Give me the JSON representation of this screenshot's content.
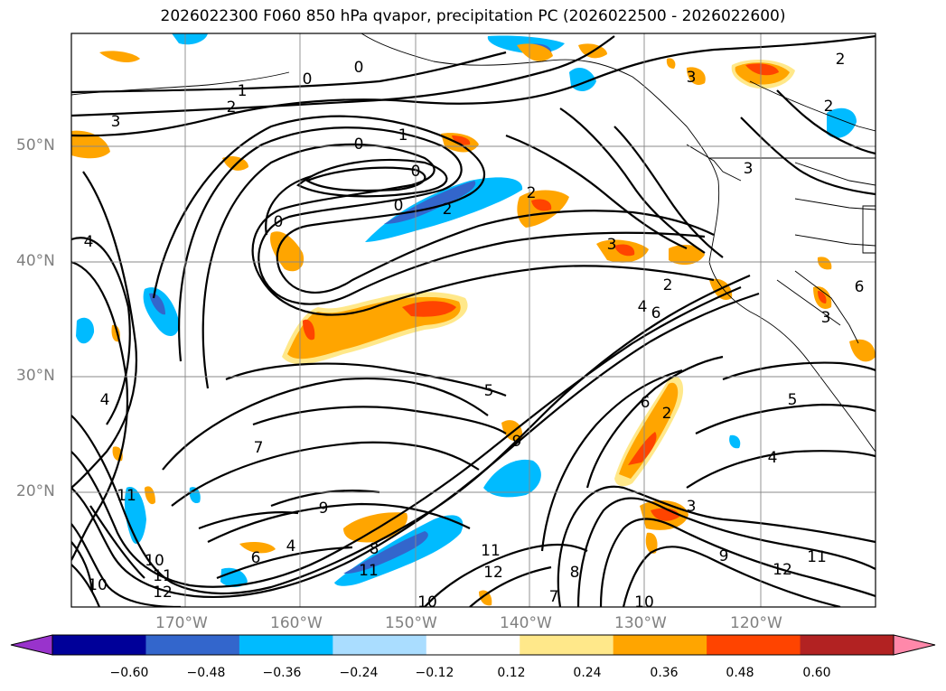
{
  "title": "2026022300 F060 850 hPa qvapor, precipitation PC (2026022500 - 2026022600)",
  "lat_labels": [
    "50°N",
    "40°N",
    "30°N",
    "20°N"
  ],
  "lon_labels": [
    "170°W",
    "160°W",
    "150°W",
    "140°W",
    "130°W",
    "120°W"
  ],
  "colorbar": {
    "ticks": [
      "−0.60",
      "−0.48",
      "−0.36",
      "−0.24",
      "−0.12",
      "0.12",
      "0.24",
      "0.36",
      "0.48",
      "0.60"
    ],
    "colors": [
      "#9933cc",
      "#000099",
      "#3366cc",
      "#00bbff",
      "#aaddff",
      "#ffffff",
      "#ffe88a",
      "#ffa500",
      "#ff4400",
      "#b22222",
      "#ff88aa"
    ]
  },
  "contour_labels": [
    "0",
    "1",
    "2",
    "3",
    "4",
    "5",
    "6",
    "7",
    "8",
    "9",
    "10",
    "11",
    "12"
  ],
  "contour_label_marks": [
    [
      "0",
      340,
      88
    ],
    [
      "1",
      268,
      101
    ],
    [
      "2",
      256,
      119
    ],
    [
      "3",
      128,
      135
    ],
    [
      "0",
      397,
      75
    ],
    [
      "2",
      930,
      66
    ],
    [
      "2",
      917,
      118
    ],
    [
      "3",
      765,
      86
    ],
    [
      "3",
      828,
      187
    ],
    [
      "0",
      397,
      160
    ],
    [
      "1",
      446,
      150
    ],
    [
      "0",
      460,
      190
    ],
    [
      "0",
      441,
      228
    ],
    [
      "0",
      308,
      246
    ],
    [
      "2",
      495,
      232
    ],
    [
      "2",
      588,
      214
    ],
    [
      "3",
      677,
      271
    ],
    [
      "2",
      739,
      316
    ],
    [
      "4",
      711,
      340
    ],
    [
      "6",
      726,
      347
    ],
    [
      "4",
      98,
      268
    ],
    [
      "5",
      541,
      433
    ],
    [
      "9",
      572,
      489
    ],
    [
      "7",
      286,
      496
    ],
    [
      "4",
      116,
      443
    ],
    [
      "11",
      140,
      549
    ],
    [
      "9",
      358,
      563
    ],
    [
      "8",
      414,
      608
    ],
    [
      "11",
      408,
      632
    ],
    [
      "10",
      171,
      621
    ],
    [
      "11",
      180,
      638
    ],
    [
      "12",
      180,
      656
    ],
    [
      "10",
      108,
      648
    ],
    [
      "6",
      283,
      618
    ],
    [
      "4",
      322,
      605
    ],
    [
      "11",
      543,
      610
    ],
    [
      "12",
      546,
      634
    ],
    [
      "8",
      636,
      634
    ],
    [
      "7",
      613,
      661
    ],
    [
      "10",
      473,
      667
    ],
    [
      "10",
      713,
      667
    ],
    [
      "9",
      801,
      616
    ],
    [
      "12",
      866,
      631
    ],
    [
      "11",
      904,
      617
    ],
    [
      "3",
      765,
      561
    ],
    [
      "4",
      855,
      507
    ],
    [
      "5",
      877,
      443
    ],
    [
      "2",
      738,
      458
    ],
    [
      "6",
      714,
      446
    ],
    [
      "6",
      951,
      318
    ],
    [
      "3",
      914,
      352
    ]
  ]
}
